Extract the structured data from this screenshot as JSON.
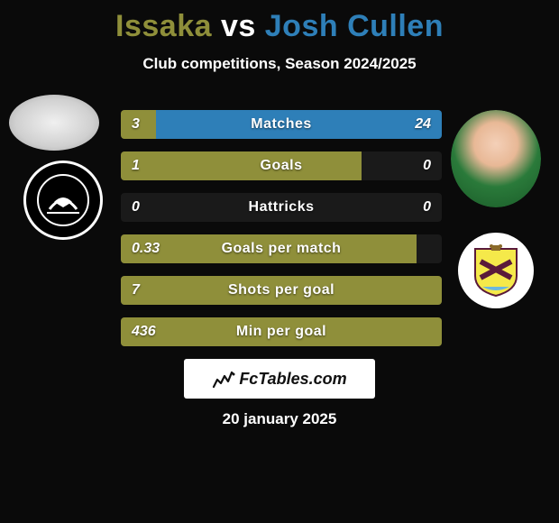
{
  "title": {
    "player1": "Issaka",
    "vs": "vs",
    "player2": "Josh Cullen",
    "color_player1": "#8f8f3a",
    "color_vs": "#ffffff",
    "color_player2": "#2e7fb8"
  },
  "subtitle": "Club competitions, Season 2024/2025",
  "colors": {
    "left_fill": "#8f8f3a",
    "right_fill": "#2e7fb8",
    "row_bg": "#1a1a1a",
    "text": "#ffffff"
  },
  "bars": [
    {
      "stat": "Matches",
      "left": "3",
      "right": "24",
      "left_pct": 11,
      "right_pct": 89
    },
    {
      "stat": "Goals",
      "left": "1",
      "right": "0",
      "left_pct": 75,
      "right_pct": 0
    },
    {
      "stat": "Hattricks",
      "left": "0",
      "right": "0",
      "left_pct": 0,
      "right_pct": 0
    },
    {
      "stat": "Goals per match",
      "left": "0.33",
      "right": "",
      "left_pct": 92,
      "right_pct": 0
    },
    {
      "stat": "Shots per goal",
      "left": "7",
      "right": "",
      "left_pct": 100,
      "right_pct": 0
    },
    {
      "stat": "Min per goal",
      "left": "436",
      "right": "",
      "left_pct": 100,
      "right_pct": 0
    }
  ],
  "site": "FcTables.com",
  "date": "20 january 2025"
}
